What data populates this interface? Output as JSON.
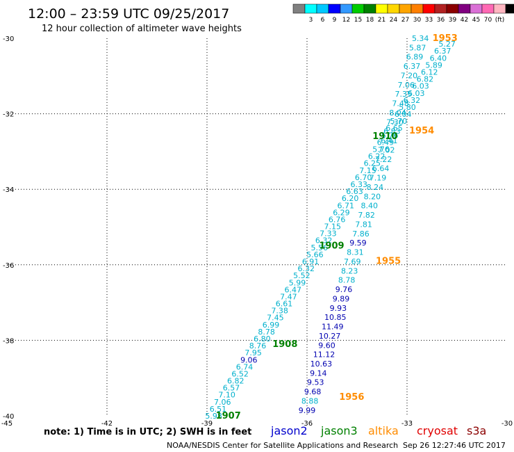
{
  "header": {
    "title": "12:00 – 23:59 UTC 09/25/2017",
    "subtitle": "12 hour collection of altimeter wave heights"
  },
  "legend": {
    "colors": [
      "#808080",
      "#00ffff",
      "#00c8ff",
      "#0000ff",
      "#3399ff",
      "#00cc00",
      "#008000",
      "#ffff00",
      "#ffd700",
      "#ffa500",
      "#ff7f00",
      "#ff0000",
      "#b22222",
      "#8b0000",
      "#800080",
      "#da70d6",
      "#ff69b4",
      "#ffb6c1",
      "#000000"
    ],
    "ticks": [
      "3",
      "6",
      "9",
      "12",
      "15",
      "18",
      "21",
      "24",
      "27",
      "30",
      "33",
      "36",
      "39",
      "42",
      "45",
      "70",
      "(ft)"
    ]
  },
  "footer": {
    "note": "note: 1) Time is in UTC; 2) SWH is in feet",
    "satellites": [
      {
        "name": "jason2",
        "color": "#0000cc"
      },
      {
        "name": "jason3",
        "color": "#008000"
      },
      {
        "name": "altika",
        "color": "#ff8c00"
      },
      {
        "name": "cryosat",
        "color": "#e00000"
      },
      {
        "name": "s3a",
        "color": "#8b0000"
      }
    ],
    "credit": "NOAA/NESDIS Center for Satellite Applications and Research",
    "timestamp": "Sep 26 12:27:46 UTC 2017"
  },
  "chart_data": {
    "type": "scatter",
    "xlim": [
      -45,
      -30
    ],
    "ylim": [
      -40,
      -30
    ],
    "x_ticks": [
      "-45",
      "-42",
      "-39",
      "-36",
      "-33",
      "-30"
    ],
    "y_ticks": [
      "-30",
      "-32",
      "-34",
      "-36",
      "-38",
      "-40"
    ],
    "grid": true,
    "colors": {
      "jason3": "#00b0cc",
      "jason2": "#0000b0",
      "time": "#008000",
      "time_alt": "#ff8c00"
    },
    "tracks": [
      {
        "name": "jason3",
        "start": [
          -38.8,
          -40.0
        ],
        "end": [
          -31.8,
          -30.15
        ],
        "values": [
          "5.98",
          "6.51",
          "7.06",
          "7.10",
          "6.57",
          "6.82",
          "6.52",
          "6.74",
          "9.06",
          "7.95",
          "8.76",
          "6.80",
          "8.78",
          "6.99",
          "7.45",
          "7.38",
          "6.61",
          "7.47",
          "6.47",
          "5.99",
          "5.52",
          "6.32",
          "6.91",
          "5.66",
          "5.56",
          "6.32",
          "7.33",
          "7.15",
          "6.76",
          "6.29",
          "6.71",
          "6.20",
          "6.63",
          "6.33",
          "6.70",
          "7.15",
          "6.25",
          "6.22",
          "5.76",
          "6.49",
          "5.76",
          "6.65",
          "5.70",
          "6.04",
          "5.80",
          "6.32",
          "6.03",
          "6.03",
          "6.82",
          "6.12",
          "5.89",
          "6.40",
          "6.37",
          "5.27"
        ],
        "tiers": [
          0,
          0,
          0,
          0,
          0,
          0,
          0,
          0,
          1,
          0,
          0,
          0,
          0,
          0,
          0,
          0,
          0,
          0,
          0,
          0,
          0,
          0,
          0,
          0,
          0,
          0,
          0,
          0,
          0,
          0,
          0,
          0,
          0,
          0,
          0,
          0,
          0,
          0,
          0,
          0,
          0,
          0,
          0,
          0,
          0,
          0,
          0,
          0,
          0,
          0,
          0,
          0,
          0,
          0
        ]
      },
      {
        "name": "jason2",
        "start": [
          -36.0,
          -39.85
        ],
        "end": [
          -32.6,
          -30.0
        ],
        "values": [
          "9.99",
          "8.88",
          "9.68",
          "9.53",
          "9.14",
          "10.63",
          "11.12",
          "9.60",
          "10.27",
          "11.49",
          "10.85",
          "9.93",
          "9.89",
          "9.76",
          "8.78",
          "8.23",
          "7.69",
          "8.31",
          "9.59",
          "7.86",
          "7.81",
          "7.82",
          "8.40",
          "8.20",
          "8.24",
          "7.19",
          "6.64",
          "7.22",
          "7.02",
          "6.41",
          "6.83",
          "7.30",
          "8.04",
          "7.48",
          "7.35",
          "7.06",
          "7.20",
          "6.37",
          "6.89",
          "5.87",
          "5.34"
        ],
        "tiers": [
          1,
          0,
          1,
          1,
          1,
          1,
          1,
          1,
          1,
          1,
          1,
          1,
          1,
          1,
          0,
          0,
          0,
          0,
          1,
          0,
          0,
          0,
          0,
          0,
          0,
          0,
          0,
          0,
          0,
          0,
          0,
          0,
          0,
          0,
          0,
          0,
          0,
          0,
          0,
          0,
          0
        ]
      }
    ],
    "time_labels": [
      {
        "text": "1907",
        "x": -38.8,
        "y": -40.0,
        "color": "time"
      },
      {
        "text": "1908",
        "x": -37.1,
        "y": -38.1,
        "color": "time"
      },
      {
        "text": "1909",
        "x": -35.7,
        "y": -35.5,
        "color": "time"
      },
      {
        "text": "1910",
        "x": -34.1,
        "y": -32.6,
        "color": "time"
      },
      {
        "text": "1953",
        "x": -32.3,
        "y": -30.0,
        "color": "time_alt"
      },
      {
        "text": "1954",
        "x": -33.0,
        "y": -32.45,
        "color": "time_alt"
      },
      {
        "text": "1955",
        "x": -34.0,
        "y": -35.9,
        "color": "time_alt"
      },
      {
        "text": "1956",
        "x": -35.1,
        "y": -39.5,
        "color": "time_alt"
      }
    ]
  }
}
